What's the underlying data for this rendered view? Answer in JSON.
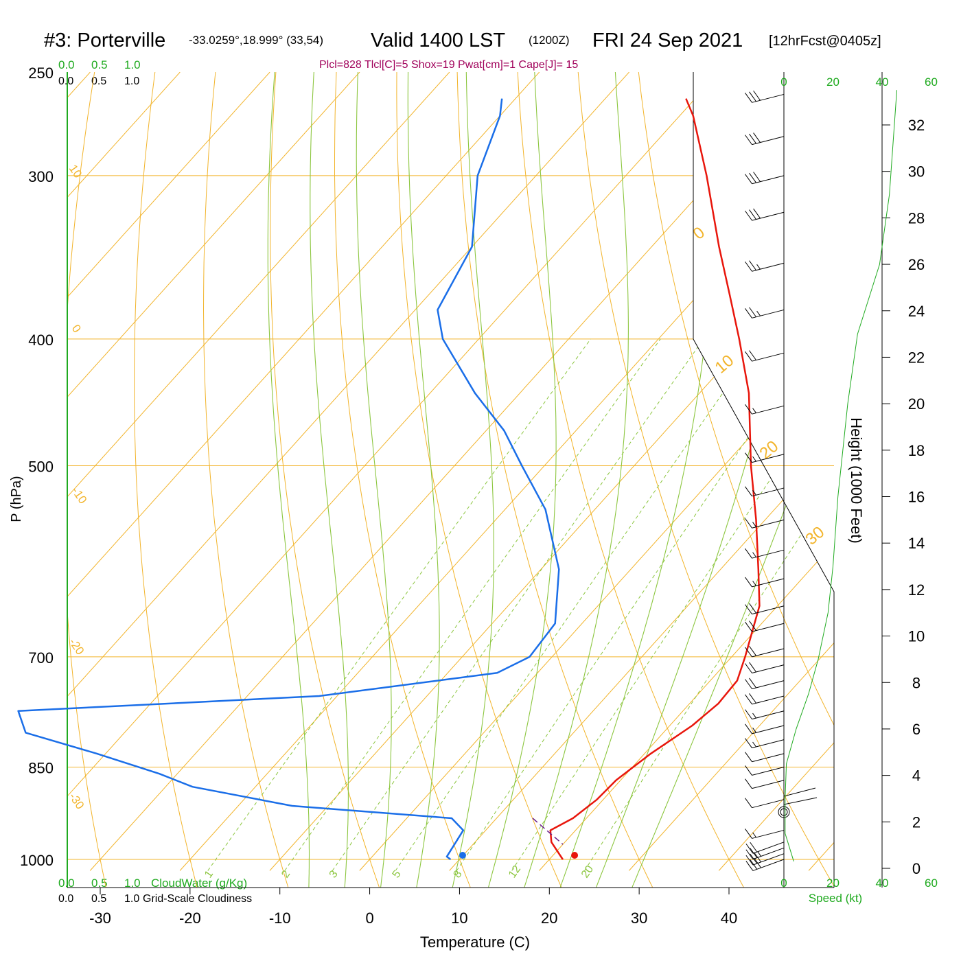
{
  "title": {
    "station": "#3: Porterville",
    "coords": "-33.0259°,18.999° (33,54)",
    "valid_main": "Valid 1400 LST",
    "valid_z": "(1200Z)",
    "valid_date": "FRI 24 Sep 2021",
    "forecast": "[12hrFcst@0405z]"
  },
  "subtitle": "Plcl=828 Tlcl[C]=5 Shox=19 Pwat[cm]=1 Cape[J]= 15",
  "colors": {
    "temperature": "#e8160c",
    "dewpoint": "#1a6ee8",
    "isotherm": "#f2b42b",
    "dry_adiabat": "#8cc63f",
    "mixing_ratio": "#8cc63f",
    "green_text": "#1faa1f",
    "subtitle": "#a0005a",
    "parcel": "#6a1f8a"
  },
  "labels": {
    "cloudwater_top_scale": [
      "0.0",
      "0.5",
      "1.0"
    ],
    "cloudiness_top_scale": [
      "0.0",
      "0.5",
      "1.0"
    ],
    "cloudwater_bottom_scale": [
      "0.0",
      "0.5",
      "1.0"
    ],
    "cloudiness_bottom_scale": [
      "0.0",
      "0.5",
      "1.0"
    ],
    "cloudwater_label": "CloudWater (g/Kg)",
    "cloudiness_label": "Grid-Scale Cloudiness",
    "speed_label": "Speed (kt)"
  },
  "chart_data": {
    "type": "line",
    "xlabel": "Temperature (C)",
    "ylabel": "P (hPa)",
    "y2label": "Height (1000 Feet)",
    "x_ticks": [
      "-30",
      "-20",
      "-10",
      "0",
      "10",
      "20",
      "30",
      "40"
    ],
    "pressure_ticks": [
      "250",
      "300",
      "400",
      "500",
      "700",
      "850",
      "1000"
    ],
    "height_ticks": [
      "0",
      "2",
      "4",
      "6",
      "8",
      "10",
      "12",
      "14",
      "16",
      "18",
      "20",
      "22",
      "24",
      "26",
      "28",
      "30",
      "32"
    ],
    "speed_ticks": [
      "0",
      "20",
      "40",
      "60"
    ],
    "isotherm_labels": [
      "10",
      "0",
      "-10",
      "-20",
      "-30"
    ],
    "isotherm_labels_right": [
      "0",
      "10",
      "20",
      "30"
    ],
    "mixing_ratio_labels": [
      "1",
      "2",
      "3",
      "5",
      "8",
      "12",
      "20"
    ],
    "series": [
      {
        "name": "Temperature",
        "points": [
          {
            "p": 1000,
            "t": 21.5
          },
          {
            "p": 970,
            "t": 18.5
          },
          {
            "p": 950,
            "t": 17.2
          },
          {
            "p": 930,
            "t": 18.5
          },
          {
            "p": 900,
            "t": 19.3
          },
          {
            "p": 870,
            "t": 19.5
          },
          {
            "p": 830,
            "t": 20.7
          },
          {
            "p": 790,
            "t": 22.5
          },
          {
            "p": 760,
            "t": 23.2
          },
          {
            "p": 730,
            "t": 23.0
          },
          {
            "p": 700,
            "t": 21.5
          },
          {
            "p": 640,
            "t": 18.0
          },
          {
            "p": 600,
            "t": 14.2
          },
          {
            "p": 550,
            "t": 9.0
          },
          {
            "p": 500,
            "t": 3.0
          },
          {
            "p": 440,
            "t": -4.5
          },
          {
            "p": 400,
            "t": -11.0
          },
          {
            "p": 370,
            "t": -16.5
          },
          {
            "p": 340,
            "t": -22.5
          },
          {
            "p": 300,
            "t": -31.0
          },
          {
            "p": 270,
            "t": -38.5
          },
          {
            "p": 262,
            "t": -41.0
          }
        ]
      },
      {
        "name": "Dewpoint",
        "points": [
          {
            "p": 1000,
            "t": 9.0
          },
          {
            "p": 995,
            "t": 8.3
          },
          {
            "p": 950,
            "t": 7.5
          },
          {
            "p": 930,
            "t": 5.0
          },
          {
            "p": 910,
            "t": -14.0
          },
          {
            "p": 880,
            "t": -27.0
          },
          {
            "p": 860,
            "t": -32.0
          },
          {
            "p": 830,
            "t": -41.0
          },
          {
            "p": 800,
            "t": -51.0
          },
          {
            "p": 770,
            "t": -54.0
          },
          {
            "p": 750,
            "t": -22.0
          },
          {
            "p": 720,
            "t": -4.5
          },
          {
            "p": 700,
            "t": -2.5
          },
          {
            "p": 660,
            "t": -3.0
          },
          {
            "p": 600,
            "t": -8.0
          },
          {
            "p": 540,
            "t": -15.5
          },
          {
            "p": 500,
            "t": -22.5
          },
          {
            "p": 470,
            "t": -28.0
          },
          {
            "p": 440,
            "t": -35.0
          },
          {
            "p": 400,
            "t": -44.0
          },
          {
            "p": 380,
            "t": -47.5
          },
          {
            "p": 340,
            "t": -50.0
          },
          {
            "p": 300,
            "t": -56.5
          },
          {
            "p": 270,
            "t": -60.0
          },
          {
            "p": 262,
            "t": -61.5
          }
        ]
      }
    ],
    "surface_temperature": 22.2,
    "surface_dewpoint": 10.5,
    "pressure_range": [
      1020,
      250
    ],
    "x_range_at_1000hPa": [
      -33.5,
      41.8
    ],
    "wind_barbs_kt": [
      {
        "p": 1000,
        "speed": 30
      },
      {
        "p": 990,
        "speed": 30
      },
      {
        "p": 980,
        "speed": 25
      },
      {
        "p": 970,
        "speed": 20
      },
      {
        "p": 950,
        "speed": 15
      },
      {
        "p": 920,
        "speed": 0
      },
      {
        "p": 900,
        "speed": 10
      },
      {
        "p": 870,
        "speed": 10
      },
      {
        "p": 850,
        "speed": 10
      },
      {
        "p": 830,
        "speed": 10
      },
      {
        "p": 810,
        "speed": 15
      },
      {
        "p": 790,
        "speed": 15
      },
      {
        "p": 770,
        "speed": 15
      },
      {
        "p": 750,
        "speed": 20
      },
      {
        "p": 730,
        "speed": 20
      },
      {
        "p": 710,
        "speed": 20
      },
      {
        "p": 690,
        "speed": 20
      },
      {
        "p": 660,
        "speed": 20
      },
      {
        "p": 640,
        "speed": 20
      },
      {
        "p": 610,
        "speed": 15
      },
      {
        "p": 580,
        "speed": 15
      },
      {
        "p": 550,
        "speed": 15
      },
      {
        "p": 520,
        "speed": 15
      },
      {
        "p": 490,
        "speed": 15
      },
      {
        "p": 450,
        "speed": 15
      },
      {
        "p": 410,
        "speed": 20
      },
      {
        "p": 380,
        "speed": 25
      },
      {
        "p": 350,
        "speed": 25
      },
      {
        "p": 320,
        "speed": 30
      },
      {
        "p": 300,
        "speed": 30
      },
      {
        "p": 280,
        "speed": 30
      },
      {
        "p": 260,
        "speed": 30
      }
    ],
    "wind_speed_profile": [
      {
        "h": 0.3,
        "speed": 4
      },
      {
        "h": 1.5,
        "speed": 0.5
      },
      {
        "h": 3.0,
        "speed": 0.5
      },
      {
        "h": 4.5,
        "speed": 1
      },
      {
        "h": 6.0,
        "speed": 5
      },
      {
        "h": 7.5,
        "speed": 10
      },
      {
        "h": 9.0,
        "speed": 14
      },
      {
        "h": 11.0,
        "speed": 18
      },
      {
        "h": 13.0,
        "speed": 20
      },
      {
        "h": 16.0,
        "speed": 22
      },
      {
        "h": 20.0,
        "speed": 26
      },
      {
        "h": 23.0,
        "speed": 30
      },
      {
        "h": 26.0,
        "speed": 39
      },
      {
        "h": 29.0,
        "speed": 43
      },
      {
        "h": 32.0,
        "speed": 45
      },
      {
        "h": 33.5,
        "speed": 46
      }
    ]
  }
}
